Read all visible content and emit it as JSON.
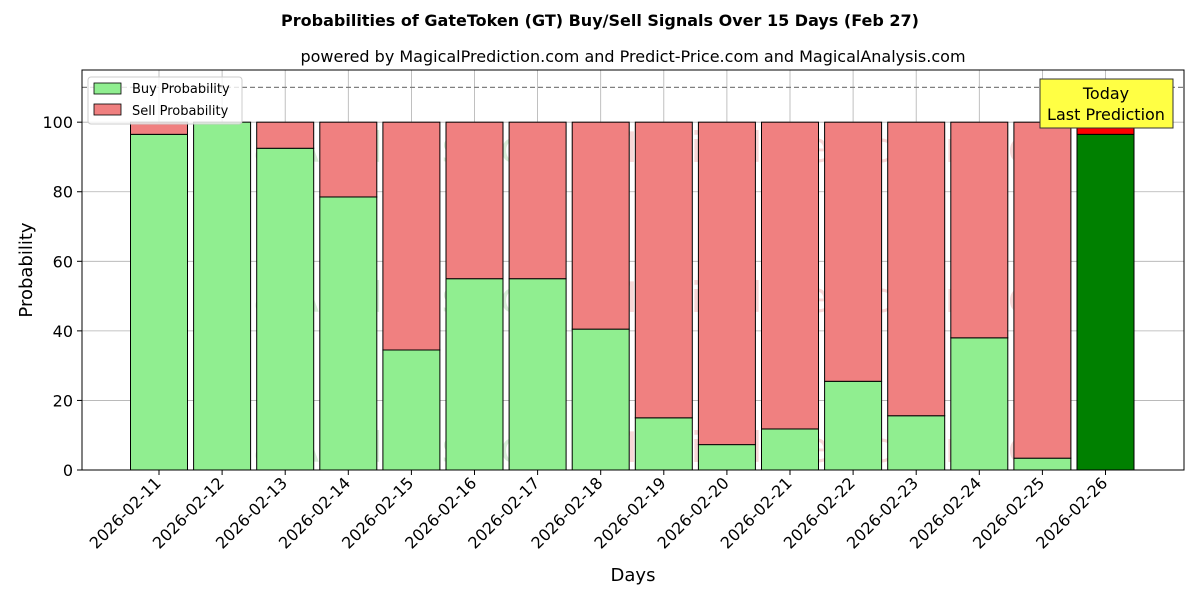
{
  "chart_data": {
    "type": "bar",
    "title": "Probabilities of GateToken (GT) Buy/Sell Signals Over 15 Days (Feb 27)",
    "subtitle": "powered by MagicalPrediction.com and Predict-Price.com and MagicalAnalysis.com",
    "xlabel": "Days",
    "ylabel": "Probability",
    "ylim": [
      0,
      115
    ],
    "yticks": [
      0,
      20,
      40,
      60,
      80,
      100
    ],
    "grid": true,
    "legend_position": "top-left",
    "reference_line": 110,
    "categories": [
      "2026-02-11",
      "2026-02-12",
      "2026-02-13",
      "2026-02-14",
      "2026-02-15",
      "2026-02-16",
      "2026-02-17",
      "2026-02-18",
      "2026-02-19",
      "2026-02-20",
      "2026-02-21",
      "2026-02-22",
      "2026-02-23",
      "2026-02-24",
      "2026-02-25",
      "2026-02-26"
    ],
    "series": [
      {
        "name": "Buy Probability",
        "color": "#90ee90",
        "today_color": "#008000",
        "values": [
          96.5,
          100,
          92.5,
          78.5,
          34.5,
          55,
          55,
          40.5,
          15,
          7.3,
          11.8,
          25.5,
          15.6,
          38,
          3.4,
          96.5
        ]
      },
      {
        "name": "Sell Probability",
        "color": "#f08080",
        "today_color": "#ff0000",
        "values": [
          3.5,
          0,
          7.5,
          21.5,
          65.5,
          45,
          45,
          59.5,
          85,
          92.7,
          88.2,
          74.5,
          84.4,
          62,
          96.6,
          3.5
        ]
      }
    ],
    "annotation": {
      "lines": [
        "Today",
        "Last Prediction"
      ],
      "color": "#ffff44"
    },
    "watermarks": [
      "MagicalAnalysis.com",
      "MagicalPrediction.com"
    ]
  }
}
